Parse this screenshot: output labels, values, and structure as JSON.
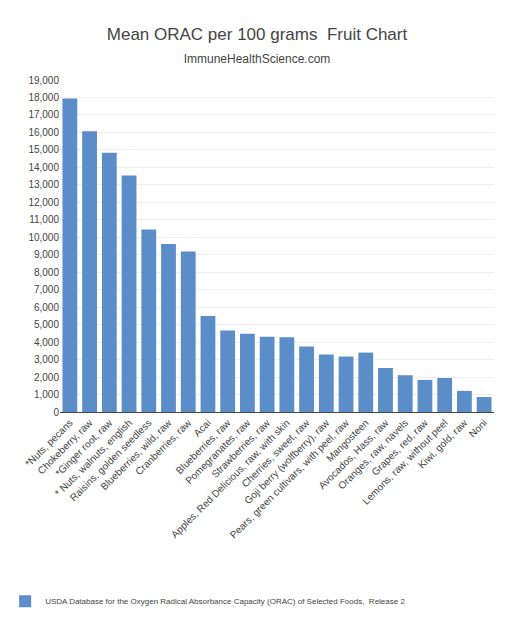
{
  "chart_data": {
    "type": "bar",
    "title": "Mean ORAC per 100 grams  Fruit Chart",
    "subtitle": "ImmuneHealthScience.com",
    "categories": [
      "*Nuts, pecans",
      "Chokeberry, raw",
      "*Ginger root, raw",
      " * Nuts, walnuts, english",
      "Raisins, golden seedless",
      "Blueberries, wild, raw",
      "Cranberries, raw",
      "Acai",
      "Blueberries, raw",
      "Pomegranates, raw",
      "Strawberries, raw",
      "Apples, Red Delicious, raw, with skin",
      "Cherries, sweet, raw",
      "Goji berry (wolfberry), raw",
      "Pears, green cultivars, with peel, raw",
      "Mangosteen",
      "Avocados, Hass, raw",
      "Oranges, raw, navels",
      "Grapes, red, raw",
      "Lemons, raw, without peel",
      "Kiwi, gold, raw",
      "Noni"
    ],
    "series": [
      {
        "name": "USDA Database for the Oxygen Radical Absorbance Capacity (ORAC) of Selected Foods,  Release 2",
        "color": "#5B8DC8",
        "values": [
          17940,
          16062,
          14840,
          13541,
          10450,
          9621,
          9182,
          5500,
          4669,
          4479,
          4302,
          4275,
          3747,
          3290,
          3172,
          3400,
          2519,
          2103,
          1837,
          1945,
          1210,
          859
        ]
      }
    ],
    "ylim": [
      0,
      19000
    ],
    "yticks": [
      0,
      {
        "value": 1000,
        "label": "1,000"
      },
      {
        "value": 2000,
        "label": "2,000"
      },
      {
        "value": 3000,
        "label": "3,000"
      },
      {
        "value": 4000,
        "label": "4,000"
      },
      {
        "value": 5000,
        "label": "5,000"
      },
      {
        "value": 6000,
        "label": "6,000"
      },
      {
        "value": 7000,
        "label": "7,000"
      },
      {
        "value": 8000,
        "label": "8,000"
      },
      {
        "value": 9000,
        "label": "9,000"
      },
      {
        "value": 10000,
        "label": "10,000"
      },
      {
        "value": 11000,
        "label": "11,000"
      },
      {
        "value": 12000,
        "label": "12,000"
      },
      {
        "value": 13000,
        "label": "13,000"
      },
      {
        "value": 14000,
        "label": "14,000"
      },
      {
        "value": 15000,
        "label": "15,000"
      },
      {
        "value": 16000,
        "label": "16,000"
      },
      {
        "value": 17000,
        "label": "17,000"
      },
      {
        "value": 18000,
        "label": "18,000"
      },
      {
        "value": 19000,
        "label": "19,000"
      }
    ],
    "grid": true,
    "legend": "bottom"
  }
}
